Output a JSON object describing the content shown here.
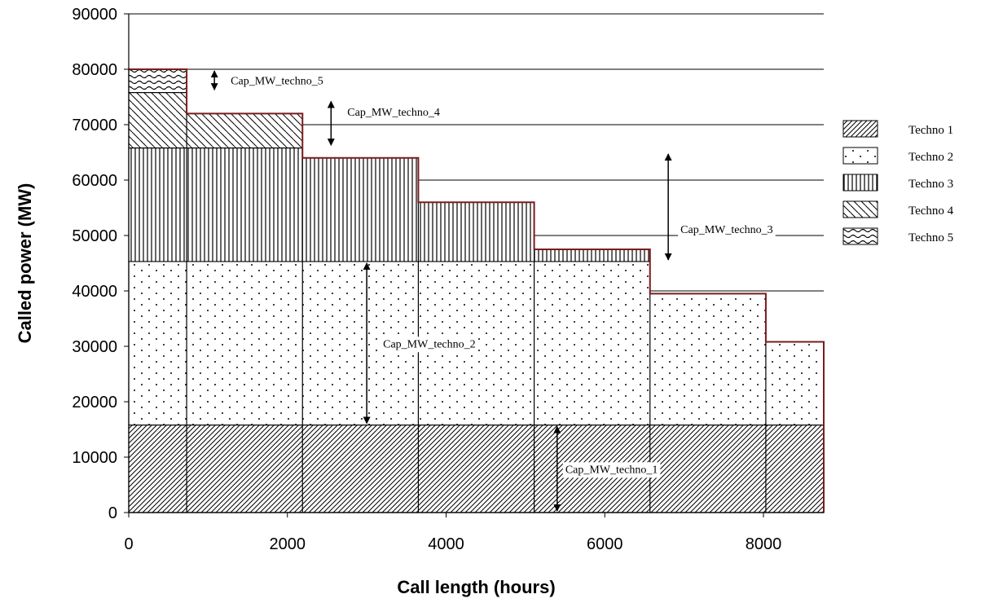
{
  "chart_data": {
    "type": "area",
    "xlabel": "Call length (hours)",
    "ylabel": "Called power (MW)",
    "xlim": [
      0,
      8760
    ],
    "ylim": [
      0,
      90000
    ],
    "x_ticks": [
      "0",
      "2000",
      "4000",
      "6000",
      "8000"
    ],
    "y_ticks": [
      "0",
      "10000",
      "20000",
      "30000",
      "40000",
      "50000",
      "60000",
      "70000",
      "80000",
      "90000"
    ],
    "grid": "horizontal",
    "legend_position": "right",
    "load_duration_curve": {
      "x": [
        0,
        730,
        2190,
        3650,
        5110,
        6570,
        8030,
        8760
      ],
      "y": [
        80000,
        72000,
        64000,
        56000,
        47500,
        39500,
        30800,
        0
      ]
    },
    "series": [
      {
        "name": "Techno 1",
        "pattern": "diagonal-dense",
        "capacity_mw": 15800
      },
      {
        "name": "Techno 2",
        "pattern": "dots",
        "capacity_mw": 29500
      },
      {
        "name": "Techno 3",
        "pattern": "vertical-lines",
        "capacity_mw": 20500
      },
      {
        "name": "Techno 4",
        "pattern": "diagonal-sparse",
        "capacity_mw": 10000
      },
      {
        "name": "Techno 5",
        "pattern": "waves",
        "capacity_mw": 4200
      }
    ],
    "annotations": [
      {
        "text": "Cap_MW_techno_1",
        "x": 5400,
        "y_from": 0,
        "y_to": 15800
      },
      {
        "text": "Cap_MW_techno_2",
        "x": 3000,
        "y_from": 15800,
        "y_to": 45300
      },
      {
        "text": "Cap_MW_techno_3",
        "x": 6800,
        "y_from": 45300,
        "y_to": 65000
      },
      {
        "text": "Cap_MW_techno_4",
        "x": 2550,
        "y_from": 66000,
        "y_to": 74500
      },
      {
        "text": "Cap_MW_techno_5",
        "x": 1080,
        "y_from": 76000,
        "y_to": 80000
      }
    ]
  }
}
